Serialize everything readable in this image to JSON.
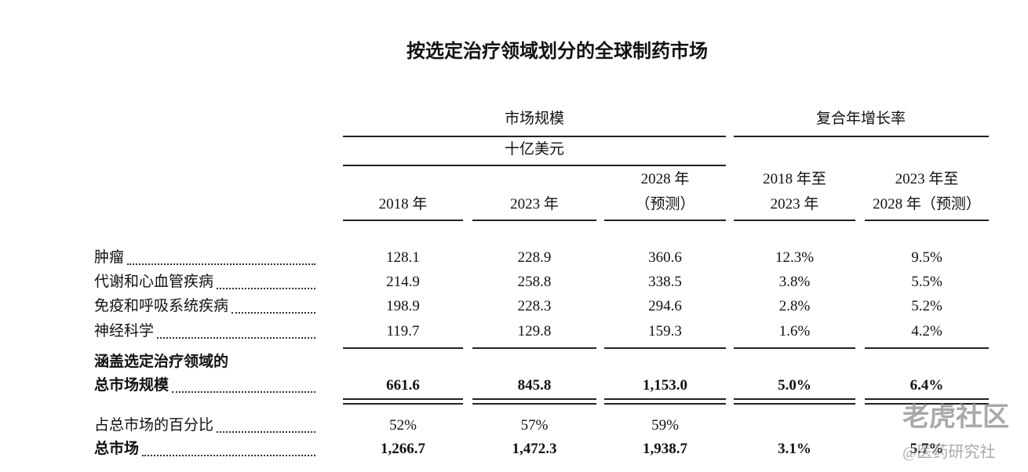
{
  "title": "按选定治疗领域划分的全球制药市场",
  "table": {
    "group_headers": [
      "市场规模",
      "复合年增长率"
    ],
    "unit": "十亿美元",
    "columns": [
      [
        "2018 年"
      ],
      [
        "2023 年"
      ],
      [
        "2028 年",
        "（预测）"
      ],
      [
        "2018 年至",
        "2023 年"
      ],
      [
        "2023 年至",
        "2028 年（预测）"
      ]
    ],
    "rows": [
      {
        "label": [
          "肿瘤"
        ],
        "bold": false,
        "cells": [
          "128.1",
          "228.9",
          "360.6",
          "12.3%",
          "9.5%"
        ]
      },
      {
        "label": [
          "代谢和心血管疾病"
        ],
        "bold": false,
        "cells": [
          "214.9",
          "258.8",
          "338.5",
          "3.8%",
          "5.5%"
        ]
      },
      {
        "label": [
          "免疫和呼吸系统疾病"
        ],
        "bold": false,
        "cells": [
          "198.9",
          "228.3",
          "294.6",
          "2.8%",
          "5.2%"
        ]
      },
      {
        "label": [
          "神经科学"
        ],
        "bold": false,
        "cells": [
          "119.7",
          "129.8",
          "159.3",
          "1.6%",
          "4.2%"
        ]
      },
      {
        "label": [
          "涵盖选定治疗领域的",
          "总市场规模"
        ],
        "bold": true,
        "cells": [
          "661.6",
          "845.8",
          "1,153.0",
          "5.0%",
          "6.4%"
        ]
      },
      {
        "label": [
          "占总市场的百分比"
        ],
        "bold": false,
        "cells": [
          "52%",
          "57%",
          "59%",
          "",
          ""
        ]
      },
      {
        "label": [
          "总市场"
        ],
        "bold": true,
        "cells": [
          "1,266.7",
          "1,472.3",
          "1,938.7",
          "3.1%",
          "5.7%"
        ]
      }
    ]
  },
  "watermark": [
    "老虎社区",
    "@医药研究社"
  ]
}
